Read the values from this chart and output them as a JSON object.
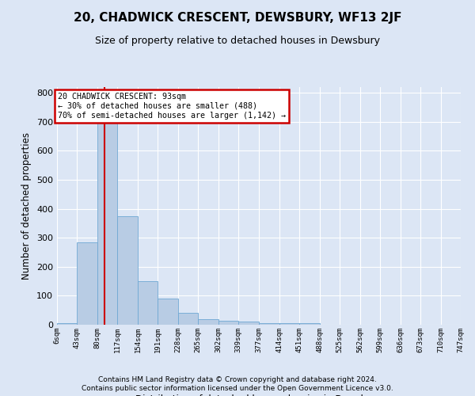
{
  "title": "20, CHADWICK CRESCENT, DEWSBURY, WF13 2JF",
  "subtitle": "Size of property relative to detached houses in Dewsbury",
  "xlabel": "Distribution of detached houses by size in Dewsbury",
  "ylabel": "Number of detached properties",
  "footer1": "Contains HM Land Registry data © Crown copyright and database right 2024.",
  "footer2": "Contains public sector information licensed under the Open Government Licence v3.0.",
  "annotation_line1": "20 CHADWICK CRESCENT: 93sqm",
  "annotation_line2": "← 30% of detached houses are smaller (488)",
  "annotation_line3": "70% of semi-detached houses are larger (1,142) →",
  "bin_edges": [
    6,
    43,
    80,
    117,
    154,
    191,
    228,
    265,
    302,
    339,
    377,
    414,
    451,
    488,
    525,
    562,
    599,
    636,
    673,
    710,
    747
  ],
  "bar_heights": [
    5,
    285,
    750,
    375,
    150,
    90,
    40,
    20,
    15,
    12,
    5,
    5,
    5,
    0,
    0,
    0,
    0,
    0,
    0,
    0
  ],
  "bar_color": "#b8cce4",
  "bar_edge_color": "#6fa8d4",
  "vline_color": "#cc0000",
  "vline_x": 93,
  "annotation_box_color": "#cc0000",
  "bg_color": "#dce6f5",
  "grid_color": "#ffffff",
  "ylim": [
    0,
    820
  ],
  "yticks": [
    0,
    100,
    200,
    300,
    400,
    500,
    600,
    700,
    800
  ]
}
